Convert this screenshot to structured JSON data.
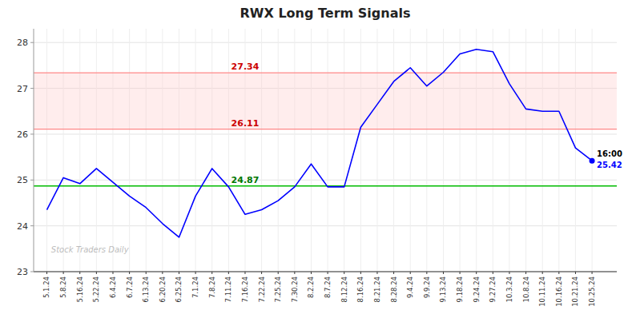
{
  "chart_data": {
    "type": "line",
    "title": "RWX Long Term Signals",
    "categories": [
      "5.1.24",
      "5.8.24",
      "5.16.24",
      "5.22.24",
      "6.4.24",
      "6.7.24",
      "6.13.24",
      "6.20.24",
      "6.25.24",
      "7.1.24",
      "7.8.24",
      "7.11.24",
      "7.16.24",
      "7.22.24",
      "7.25.24",
      "7.30.24",
      "8.2.24",
      "8.7.24",
      "8.12.24",
      "8.16.24",
      "8.21.24",
      "8.28.24",
      "9.4.24",
      "9.9.24",
      "9.13.24",
      "9.18.24",
      "9.24.24",
      "9.27.24",
      "10.3.24",
      "10.8.24",
      "10.11.24",
      "10.16.24",
      "10.21.24",
      "10.25.24"
    ],
    "values": [
      24.35,
      25.05,
      24.92,
      25.25,
      24.95,
      24.65,
      24.4,
      24.05,
      23.75,
      24.65,
      25.25,
      24.85,
      24.25,
      24.35,
      24.55,
      24.85,
      25.35,
      24.85,
      24.85,
      26.15,
      26.65,
      27.15,
      27.45,
      27.05,
      27.35,
      27.75,
      27.85,
      27.8,
      27.1,
      26.55,
      26.5,
      26.5,
      25.7,
      25.42
    ],
    "color": "blue",
    "marker": "none",
    "line_style": "solid",
    "ylim": [
      23,
      28.3
    ],
    "yticks": [
      23,
      24,
      25,
      26,
      27,
      28
    ],
    "grid": true,
    "reference_lines": [
      {
        "value": 24.87,
        "label": "24.87",
        "color": "#00bb00",
        "label_color": "#007700"
      },
      {
        "value": 26.11,
        "label": "26.11",
        "color": "#ff8888",
        "label_color": "#cc0000"
      },
      {
        "value": 27.34,
        "label": "27.34",
        "color": "#ff8888",
        "label_color": "#cc0000"
      }
    ],
    "band": {
      "from": 26.11,
      "to": 27.34,
      "color": "#ffcccc"
    },
    "last_point": {
      "time": "16:00",
      "value": 25.42,
      "label": "25.42",
      "color": "blue"
    },
    "watermark": "Stock Traders Daily"
  }
}
